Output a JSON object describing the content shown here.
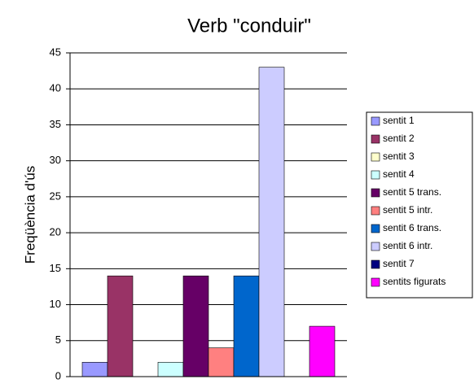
{
  "chart_data": {
    "type": "bar",
    "title": "Verb \"conduir\"",
    "y_label": "Freqüència d'ús",
    "categories": [
      null
    ],
    "series": [
      {
        "name": "sentit 1",
        "color": "#9999ff",
        "values": [
          2
        ]
      },
      {
        "name": "sentit 2",
        "color": "#993366",
        "values": [
          14
        ]
      },
      {
        "name": "sentit 3",
        "color": "#ffffcc",
        "values": [
          0
        ]
      },
      {
        "name": "sentit 4",
        "color": "#ccffff",
        "values": [
          2
        ]
      },
      {
        "name": "sentit 5 trans.",
        "color": "#660066",
        "values": [
          14
        ]
      },
      {
        "name": "sentit 5 intr.",
        "color": "#ff8080",
        "values": [
          4
        ]
      },
      {
        "name": "sentit 6 trans.",
        "color": "#0066cc",
        "values": [
          14
        ]
      },
      {
        "name": "sentit 6 intr.",
        "color": "#ccccff",
        "values": [
          43
        ]
      },
      {
        "name": "sentit 7",
        "color": "#000080",
        "values": [
          0
        ]
      },
      {
        "name": "sentits figurats",
        "color": "#ff00ff",
        "values": [
          7
        ]
      }
    ],
    "ylim": [
      0,
      45
    ],
    "yticks": [
      0,
      5,
      10,
      15,
      20,
      25,
      30,
      35,
      40,
      45
    ],
    "grid": true,
    "legend": "right"
  }
}
